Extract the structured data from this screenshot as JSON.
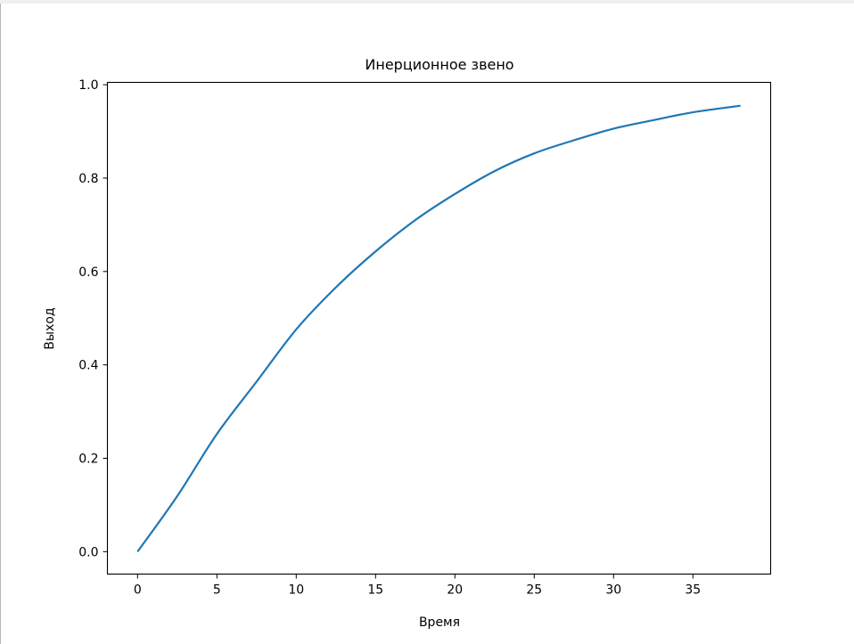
{
  "chart_data": {
    "type": "line",
    "title": "Инерционное звено",
    "xlabel": "Время",
    "ylabel": "Выход",
    "xlim": [
      -1.9,
      39.9
    ],
    "ylim": [
      -0.048,
      1.005
    ],
    "xticks": [
      0,
      5,
      10,
      15,
      20,
      25,
      30,
      35
    ],
    "xtick_labels": [
      "0",
      "5",
      "10",
      "15",
      "20",
      "25",
      "30",
      "35"
    ],
    "yticks": [
      0.0,
      0.2,
      0.4,
      0.6,
      0.8,
      1.0
    ],
    "ytick_labels": [
      "0.0",
      "0.2",
      "0.4",
      "0.6",
      "0.8",
      "1.0"
    ],
    "grid": false,
    "series": [
      {
        "color": "#1f77b4",
        "x": [
          0,
          2.5,
          5,
          7.5,
          10,
          12.5,
          15,
          17.5,
          20,
          22.5,
          25,
          27.5,
          30,
          32.5,
          35,
          38
        ],
        "y": [
          0,
          0.119,
          0.252,
          0.364,
          0.476,
          0.566,
          0.643,
          0.71,
          0.766,
          0.815,
          0.853,
          0.881,
          0.906,
          0.924,
          0.941,
          0.955
        ]
      }
    ]
  }
}
